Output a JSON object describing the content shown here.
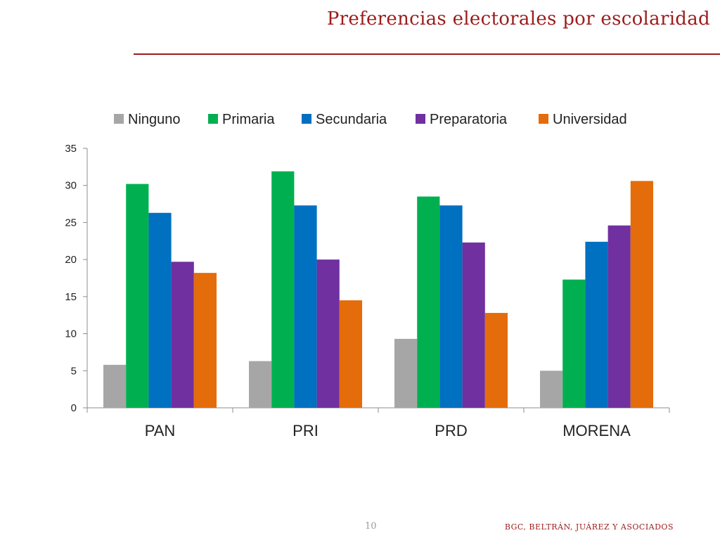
{
  "header": {
    "title": "Preferencias electorales por escolaridad"
  },
  "footer": {
    "page_number": "10",
    "credit": "BGC, BELTRÁN, JUÁREZ Y ASOCIADOS"
  },
  "chart_data": {
    "type": "bar",
    "title": "",
    "xlabel": "",
    "ylabel": "",
    "categories": [
      "PAN",
      "PRI",
      "PRD",
      "MORENA"
    ],
    "series": [
      {
        "name": "Ninguno",
        "color": "#a6a6a6",
        "values": [
          5.8,
          6.3,
          9.3,
          5.0
        ]
      },
      {
        "name": "Primaria",
        "color": "#00b050",
        "values": [
          30.2,
          31.9,
          28.5,
          17.3
        ]
      },
      {
        "name": "Secundaria",
        "color": "#0070c0",
        "values": [
          26.3,
          27.3,
          27.3,
          22.4
        ]
      },
      {
        "name": "Preparatoria",
        "color": "#7030a0",
        "values": [
          19.7,
          20.0,
          22.3,
          24.6
        ]
      },
      {
        "name": "Universidad",
        "color": "#e46c0a",
        "values": [
          18.2,
          14.5,
          12.8,
          30.6
        ]
      }
    ],
    "ylim": [
      0,
      35
    ],
    "yticks": [
      0,
      5,
      10,
      15,
      20,
      25,
      30,
      35
    ],
    "grid": false,
    "legend_position": "top"
  }
}
